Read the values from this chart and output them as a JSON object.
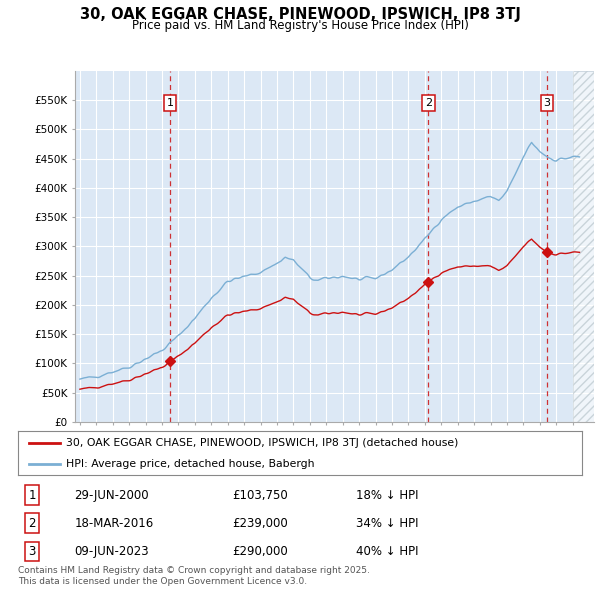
{
  "title": "30, OAK EGGAR CHASE, PINEWOOD, IPSWICH, IP8 3TJ",
  "subtitle": "Price paid vs. HM Land Registry's House Price Index (HPI)",
  "legend_line1": "30, OAK EGGAR CHASE, PINEWOOD, IPSWICH, IP8 3TJ (detached house)",
  "legend_line2": "HPI: Average price, detached house, Babergh",
  "footer": "Contains HM Land Registry data © Crown copyright and database right 2025.\nThis data is licensed under the Open Government Licence v3.0.",
  "sale_points": [
    {
      "label": "1",
      "date": "29-JUN-2000",
      "price": 103750,
      "pct": "18% ↓ HPI",
      "x_year": 2000.49
    },
    {
      "label": "2",
      "date": "18-MAR-2016",
      "price": 239000,
      "pct": "34% ↓ HPI",
      "x_year": 2016.21
    },
    {
      "label": "3",
      "date": "09-JUN-2023",
      "price": 290000,
      "pct": "40% ↓ HPI",
      "x_year": 2023.44
    }
  ],
  "ylim": [
    0,
    600000
  ],
  "xlim_start": 1994.7,
  "xlim_end": 2026.3,
  "plot_bg_color": "#dce8f5",
  "hpi_color": "#7bafd4",
  "price_color": "#cc1111",
  "grid_color": "#ffffff",
  "vline_color": "#cc1111",
  "ytick_labels": [
    "£0",
    "£50K",
    "£100K",
    "£150K",
    "£200K",
    "£250K",
    "£300K",
    "£350K",
    "£400K",
    "£450K",
    "£500K",
    "£550K"
  ],
  "ytick_values": [
    0,
    50000,
    100000,
    150000,
    200000,
    250000,
    300000,
    350000,
    400000,
    450000,
    500000,
    550000
  ]
}
